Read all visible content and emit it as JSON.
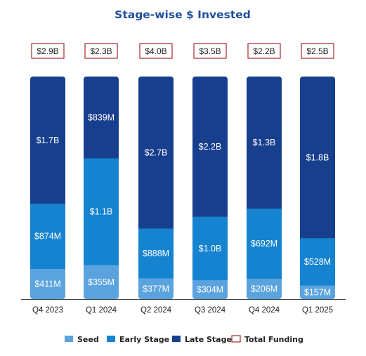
{
  "chart_data": {
    "type": "bar",
    "stacked": true,
    "title": "Stage-wise $ Invested",
    "categories": [
      "Q4 2023",
      "Q1 2024",
      "Q2 2024",
      "Q3 2024",
      "Q4 2024",
      "Q1 2025"
    ],
    "series": [
      {
        "name": "Seed",
        "color": "#5ba3de",
        "values": [
          0.411,
          0.355,
          0.377,
          0.304,
          0.206,
          0.157
        ],
        "labels": [
          "$411M",
          "$355M",
          "$377M",
          "$304M",
          "$206M",
          "$157M"
        ]
      },
      {
        "name": "Early Stage",
        "color": "#1583cf",
        "values": [
          0.874,
          1.1,
          0.888,
          1.0,
          0.692,
          0.528
        ],
        "labels": [
          "$874M",
          "$1.1B",
          "$888M",
          "$1.0B",
          "$692M",
          "$528M"
        ]
      },
      {
        "name": "Late Stage",
        "color": "#183f8e",
        "values": [
          1.7,
          0.839,
          2.7,
          2.2,
          1.3,
          1.8
        ],
        "labels": [
          "$1.7B",
          "$839M",
          "$2.7B",
          "$2.2B",
          "$1.3B",
          "$1.8B"
        ]
      }
    ],
    "totals": {
      "name": "Total Funding",
      "values": [
        2.9,
        2.3,
        4.0,
        3.5,
        2.2,
        2.5
      ],
      "labels": [
        "$2.9B",
        "$2.3B",
        "$4.0B",
        "$3.5B",
        "$2.2B",
        "$2.5B"
      ],
      "border_color": "#a7282c"
    },
    "legend": [
      "Seed",
      "Early Stage",
      "Late Stage",
      "Total Funding"
    ],
    "legend_position": "bottom",
    "grid": false,
    "normalized_100_percent": true,
    "unit": "$B"
  },
  "colors": {
    "title": "#1f4e9c",
    "axis": "#444444"
  }
}
